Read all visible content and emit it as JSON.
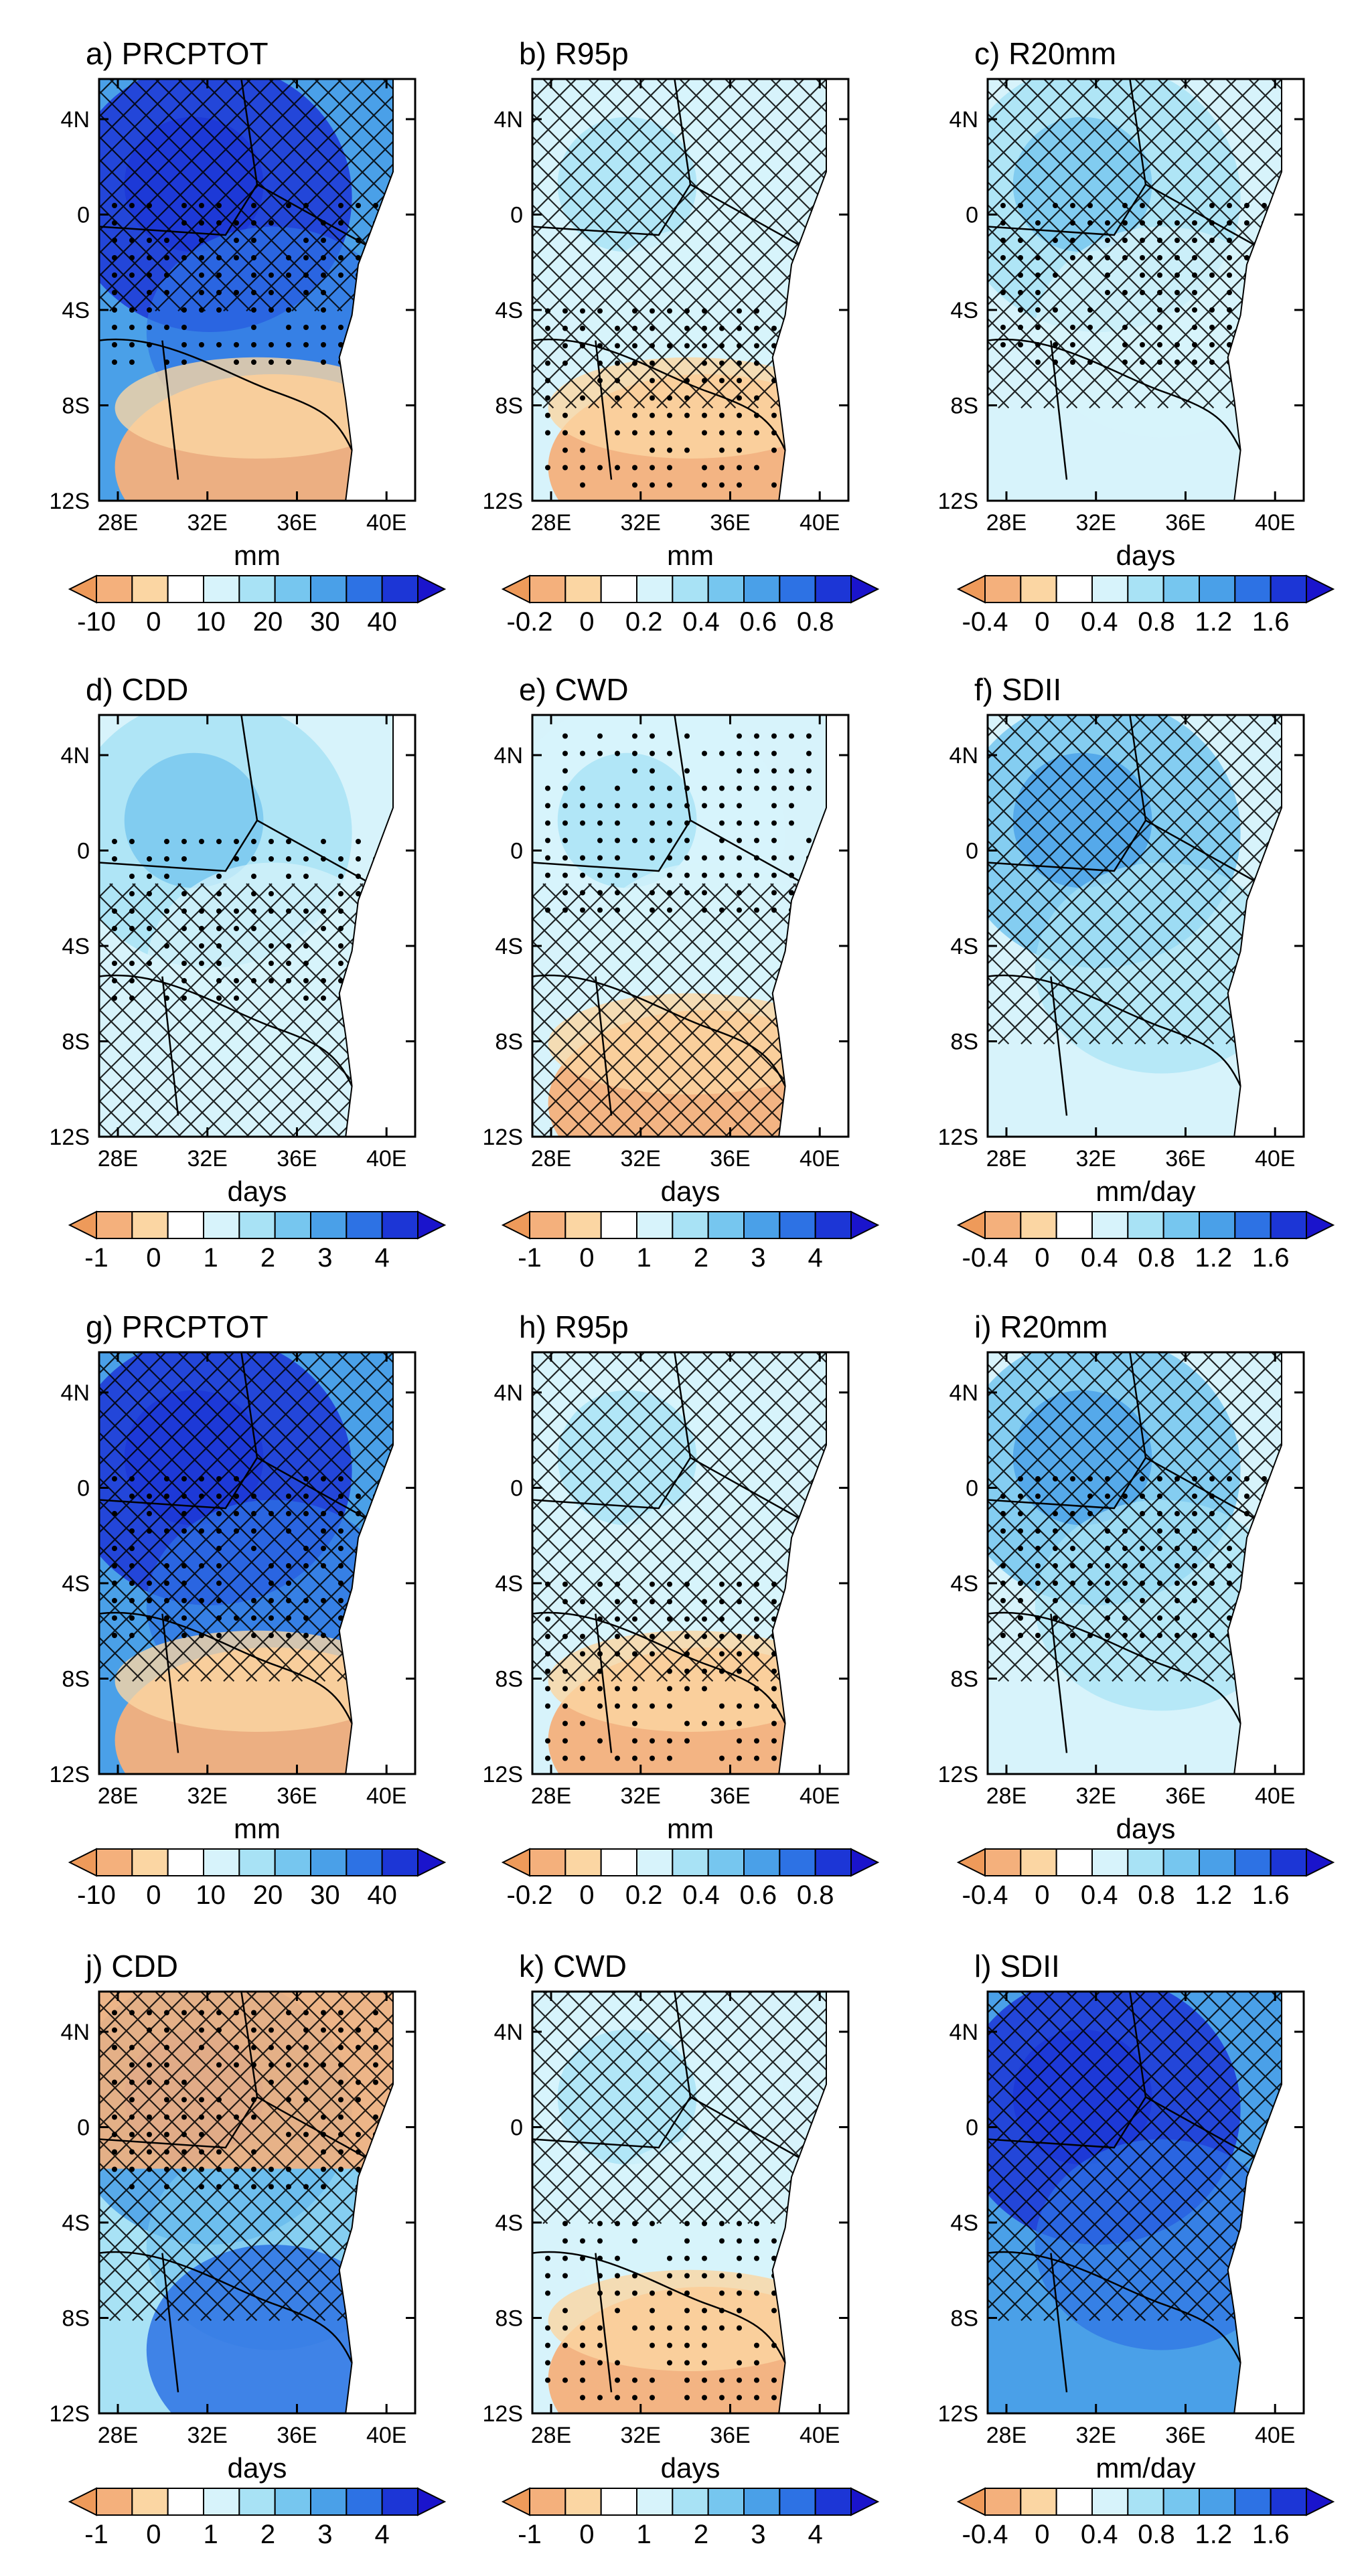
{
  "figure": {
    "colors": {
      "below": "#ee9a5a",
      "levels": [
        "#f4b07c",
        "#fbd6a3",
        "#ffffff",
        "#d7f3fb",
        "#a8e2f5",
        "#76c6ef",
        "#4aa0e8",
        "#2d72e4",
        "#1c36d6"
      ],
      "above": "#1a14cc",
      "hatch": "#000000",
      "stipple": "#000000",
      "boundary": "#000000"
    },
    "axis": {
      "lon_ticks": [
        "28E",
        "32E",
        "36E",
        "40E"
      ],
      "lat_ticks": [
        "4N",
        "0",
        "4S",
        "8S",
        "12S"
      ]
    }
  },
  "chart_data": [
    {
      "type": "heatmap",
      "panel": "a",
      "title": "a) PRCPTOT",
      "unit": "mm",
      "colorbar_labels": [
        "-10",
        "0",
        "10",
        "20",
        "30",
        "40"
      ],
      "dominant_level": 8,
      "dry_sw": true,
      "wet_n": true,
      "hatch": "north",
      "stipple": "center"
    },
    {
      "type": "heatmap",
      "panel": "b",
      "title": "b) R95p",
      "unit": "mm",
      "colorbar_labels": [
        "-0.2",
        "0",
        "0.2",
        "0.4",
        "0.6",
        "0.8"
      ],
      "dominant_level": 3,
      "dry_sw": true,
      "wet_n": false,
      "hatch": "most",
      "stipple": "south"
    },
    {
      "type": "heatmap",
      "panel": "c",
      "title": "c) R20mm",
      "unit": "days",
      "colorbar_labels": [
        "-0.4",
        "0",
        "0.4",
        "0.8",
        "1.2",
        "1.6"
      ],
      "dominant_level": 4,
      "dry_sw": false,
      "wet_n": false,
      "hatch": "most",
      "stipple": "center"
    },
    {
      "type": "heatmap",
      "panel": "d",
      "title": "d) CDD",
      "unit": "days",
      "colorbar_labels": [
        "-1",
        "0",
        "1",
        "2",
        "3",
        "4"
      ],
      "dominant_level": 4,
      "dry_sw": false,
      "wet_n": false,
      "hatch": "south",
      "stipple": "center"
    },
    {
      "type": "heatmap",
      "panel": "e",
      "title": "e) CWD",
      "unit": "days",
      "colorbar_labels": [
        "-1",
        "0",
        "1",
        "2",
        "3",
        "4"
      ],
      "dominant_level": 3,
      "dry_sw": true,
      "wet_n": false,
      "hatch": "south",
      "stipple": "north"
    },
    {
      "type": "heatmap",
      "panel": "f",
      "title": "f) SDII",
      "unit": "mm/day",
      "colorbar_labels": [
        "-0.4",
        "0",
        "0.4",
        "0.8",
        "1.2",
        "1.6"
      ],
      "dominant_level": 5,
      "dry_sw": false,
      "wet_n": true,
      "hatch": "most",
      "stipple": "none"
    },
    {
      "type": "heatmap",
      "panel": "g",
      "title": "g) PRCPTOT",
      "unit": "mm",
      "colorbar_labels": [
        "-10",
        "0",
        "10",
        "20",
        "30",
        "40"
      ],
      "dominant_level": 8,
      "dry_sw": true,
      "wet_n": true,
      "hatch": "most",
      "stipple": "center"
    },
    {
      "type": "heatmap",
      "panel": "h",
      "title": "h) R95p",
      "unit": "mm",
      "colorbar_labels": [
        "-0.2",
        "0",
        "0.2",
        "0.4",
        "0.6",
        "0.8"
      ],
      "dominant_level": 3,
      "dry_sw": true,
      "wet_n": false,
      "hatch": "most",
      "stipple": "south"
    },
    {
      "type": "heatmap",
      "panel": "i",
      "title": "i) R20mm",
      "unit": "days",
      "colorbar_labels": [
        "-0.4",
        "0",
        "0.4",
        "0.8",
        "1.2",
        "1.6"
      ],
      "dominant_level": 5,
      "dry_sw": false,
      "wet_n": true,
      "hatch": "most",
      "stipple": "center"
    },
    {
      "type": "heatmap",
      "panel": "j",
      "title": "j) CDD",
      "unit": "days",
      "colorbar_labels": [
        "-1",
        "0",
        "1",
        "2",
        "3",
        "4"
      ],
      "dominant_level": 6,
      "dry_sw": false,
      "wet_n": false,
      "dry_n": true,
      "hatch": "most",
      "stipple": "north"
    },
    {
      "type": "heatmap",
      "panel": "k",
      "title": "k) CWD",
      "unit": "days",
      "colorbar_labels": [
        "-1",
        "0",
        "1",
        "2",
        "3",
        "4"
      ],
      "dominant_level": 3,
      "dry_sw": true,
      "wet_n": false,
      "hatch": "north",
      "stipple": "south"
    },
    {
      "type": "heatmap",
      "panel": "l",
      "title": "l) SDII",
      "unit": "mm/day",
      "colorbar_labels": [
        "-0.4",
        "0",
        "0.4",
        "0.8",
        "1.2",
        "1.6"
      ],
      "dominant_level": 8,
      "dry_sw": false,
      "wet_n": true,
      "hatch": "most",
      "stipple": "none"
    }
  ]
}
